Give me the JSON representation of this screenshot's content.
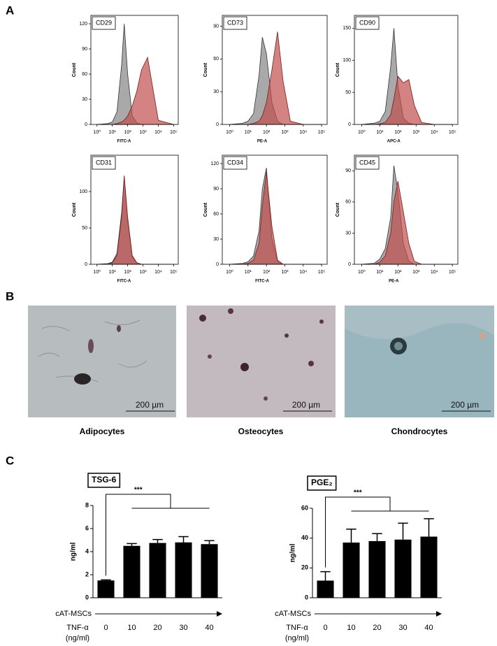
{
  "panel_labels": [
    "A",
    "B",
    "C"
  ],
  "images": [
    {
      "caption": "Adipocytes",
      "scale_bar": "200 µm"
    },
    {
      "caption": "Osteocytes",
      "scale_bar": "200 µm"
    },
    {
      "caption": "Chondrocytes",
      "scale_bar": "200 µm"
    }
  ],
  "chart_data": [
    {
      "type": "area",
      "label": "CD29",
      "xlabel": "FITC-A",
      "ylabel": "Count",
      "xlog": true,
      "xlim": [
        0.4,
        200000
      ],
      "xticks": [
        {
          "value": 1,
          "label": "10⁰"
        },
        {
          "value": 10,
          "label": "10¹"
        },
        {
          "value": 100,
          "label": "10²"
        },
        {
          "value": 1000,
          "label": "10³"
        },
        {
          "value": 10000,
          "label": "10⁴"
        },
        {
          "value": 100000,
          "label": "10⁵"
        }
      ],
      "ylim": [
        0,
        130
      ],
      "yticks": [
        0,
        30,
        60,
        90,
        120
      ],
      "x": [
        1,
        5,
        10,
        20,
        40,
        60,
        100,
        200,
        400,
        800,
        2000,
        10000,
        100000
      ],
      "series": [
        {
          "color": "#9a9a9a",
          "values": [
            0,
            1,
            3,
            15,
            70,
            120,
            60,
            10,
            2,
            0,
            0,
            0,
            0
          ]
        },
        {
          "color": "#c0504d",
          "values": [
            0,
            0,
            0,
            1,
            3,
            5,
            10,
            22,
            40,
            65,
            80,
            5,
            0
          ]
        }
      ]
    },
    {
      "type": "area",
      "label": "CD73",
      "xlabel": "PE-A",
      "ylabel": "Count",
      "xlog": true,
      "xlim": [
        0.4,
        200000
      ],
      "xticks": [
        {
          "value": 1,
          "label": "10⁰"
        },
        {
          "value": 10,
          "label": "10¹"
        },
        {
          "value": 100,
          "label": "10²"
        },
        {
          "value": 1000,
          "label": "10³"
        },
        {
          "value": 10000,
          "label": "10⁴"
        },
        {
          "value": 100000,
          "label": "10⁵"
        }
      ],
      "ylim": [
        0,
        100
      ],
      "yticks": [
        0,
        30,
        60,
        90
      ],
      "x": [
        1,
        5,
        10,
        20,
        40,
        60,
        100,
        200,
        400,
        800,
        2000,
        10000,
        100000
      ],
      "series": [
        {
          "color": "#9a9a9a",
          "values": [
            0,
            1,
            3,
            10,
            45,
            80,
            65,
            20,
            3,
            0,
            0,
            0,
            0
          ]
        },
        {
          "color": "#c0504d",
          "values": [
            0,
            0,
            0,
            1,
            3,
            8,
            20,
            50,
            85,
            40,
            3,
            0,
            0
          ]
        }
      ]
    },
    {
      "type": "area",
      "label": "CD90",
      "xlabel": "APC-A",
      "ylabel": "Count",
      "xlog": true,
      "xlim": [
        0.4,
        200000
      ],
      "xticks": [
        {
          "value": 1,
          "label": "10⁰"
        },
        {
          "value": 10,
          "label": "10¹"
        },
        {
          "value": 100,
          "label": "10²"
        },
        {
          "value": 1000,
          "label": "10³"
        },
        {
          "value": 10000,
          "label": "10⁴"
        },
        {
          "value": 100000,
          "label": "10⁵"
        }
      ],
      "ylim": [
        0,
        170
      ],
      "yticks": [
        0,
        50,
        100,
        150
      ],
      "x": [
        1,
        5,
        10,
        20,
        40,
        60,
        100,
        200,
        400,
        800,
        2000,
        10000,
        100000
      ],
      "series": [
        {
          "color": "#9a9a9a",
          "values": [
            0,
            2,
            5,
            20,
            90,
            150,
            60,
            10,
            2,
            0,
            0,
            0,
            0
          ]
        },
        {
          "color": "#c0504d",
          "values": [
            0,
            0,
            1,
            3,
            15,
            40,
            75,
            65,
            70,
            30,
            3,
            0,
            0
          ]
        }
      ]
    },
    {
      "type": "area",
      "label": "CD31",
      "xlabel": "FITC-A",
      "ylabel": "Count",
      "xlog": true,
      "xlim": [
        0.4,
        200000
      ],
      "xticks": [
        {
          "value": 1,
          "label": "10⁰"
        },
        {
          "value": 10,
          "label": "10¹"
        },
        {
          "value": 100,
          "label": "10²"
        },
        {
          "value": 1000,
          "label": "10³"
        },
        {
          "value": 10000,
          "label": "10⁴"
        },
        {
          "value": 100000,
          "label": "10⁵"
        }
      ],
      "ylim": [
        0,
        150
      ],
      "yticks": [
        0,
        50,
        100
      ],
      "x": [
        1,
        5,
        10,
        20,
        40,
        60,
        100,
        200,
        400,
        800,
        2000,
        10000,
        100000
      ],
      "series": [
        {
          "color": "#9a9a9a",
          "values": [
            0,
            1,
            3,
            15,
            70,
            120,
            60,
            10,
            2,
            0,
            0,
            0,
            0
          ]
        },
        {
          "color": "#c0504d",
          "values": [
            0,
            0,
            2,
            12,
            65,
            122,
            65,
            12,
            2,
            0,
            0,
            0,
            0
          ]
        }
      ]
    },
    {
      "type": "area",
      "label": "CD34",
      "xlabel": "FITC-A",
      "ylabel": "Count",
      "xlog": true,
      "xlim": [
        0.4,
        200000
      ],
      "xticks": [
        {
          "value": 1,
          "label": "10⁰"
        },
        {
          "value": 10,
          "label": "10¹"
        },
        {
          "value": 100,
          "label": "10²"
        },
        {
          "value": 1000,
          "label": "10³"
        },
        {
          "value": 10000,
          "label": "10⁴"
        },
        {
          "value": 100000,
          "label": "10⁵"
        }
      ],
      "ylim": [
        0,
        130
      ],
      "yticks": [
        0,
        30,
        60,
        90,
        120
      ],
      "x": [
        1,
        5,
        10,
        20,
        40,
        60,
        100,
        200,
        400,
        800,
        2000,
        10000,
        100000
      ],
      "series": [
        {
          "color": "#9a9a9a",
          "values": [
            0,
            1,
            3,
            10,
            40,
            90,
            115,
            30,
            3,
            0,
            0,
            0,
            0
          ]
        },
        {
          "color": "#c0504d",
          "values": [
            0,
            0,
            1,
            5,
            25,
            70,
            110,
            45,
            5,
            0,
            0,
            0,
            0
          ]
        }
      ]
    },
    {
      "type": "area",
      "label": "CD45",
      "xlabel": "PE-A",
      "ylabel": "Count",
      "xlog": true,
      "xlim": [
        0.4,
        200000
      ],
      "xticks": [
        {
          "value": 1,
          "label": "10⁰"
        },
        {
          "value": 10,
          "label": "10¹"
        },
        {
          "value": 100,
          "label": "10²"
        },
        {
          "value": 1000,
          "label": "10³"
        },
        {
          "value": 10000,
          "label": "10⁴"
        },
        {
          "value": 100000,
          "label": "10⁵"
        }
      ],
      "ylim": [
        0,
        105
      ],
      "yticks": [
        0,
        30,
        60,
        90
      ],
      "x": [
        1,
        5,
        10,
        20,
        40,
        60,
        100,
        200,
        400,
        800,
        2000,
        10000,
        100000
      ],
      "series": [
        {
          "color": "#9a9a9a",
          "values": [
            0,
            1,
            5,
            15,
            45,
            95,
            70,
            20,
            3,
            0,
            0,
            0,
            0
          ]
        },
        {
          "color": "#c0504d",
          "values": [
            0,
            0,
            2,
            8,
            30,
            60,
            80,
            50,
            20,
            3,
            0,
            0,
            0
          ]
        }
      ]
    },
    {
      "type": "bar",
      "label": "TSG-6",
      "ylabel": "ng/ml",
      "annotation": "***",
      "group_label": "cAT-MSCs",
      "xlabel_lines": [
        "TNF-α",
        "(ng/ml)"
      ],
      "categories": [
        "0",
        "10",
        "20",
        "30",
        "40"
      ],
      "values": [
        1.5,
        4.5,
        4.75,
        4.8,
        4.65
      ],
      "errors": [
        0.05,
        0.2,
        0.3,
        0.5,
        0.3
      ],
      "color": "#000000",
      "ylim": [
        0,
        8
      ],
      "yticks": [
        0,
        2,
        4,
        6,
        8
      ]
    },
    {
      "type": "bar",
      "label": "PGE₂",
      "ylabel": "ng/ml",
      "annotation": "***",
      "group_label": "cAT-MSCs",
      "xlabel_lines": [
        "TNF-α",
        "(ng/ml)"
      ],
      "categories": [
        "0",
        "10",
        "20",
        "30",
        "40"
      ],
      "values": [
        11.5,
        37,
        38,
        39,
        41
      ],
      "errors": [
        6,
        9,
        5,
        11,
        12
      ],
      "color": "#000000",
      "ylim": [
        0,
        60
      ],
      "yticks": [
        0,
        20,
        40,
        60
      ]
    }
  ]
}
